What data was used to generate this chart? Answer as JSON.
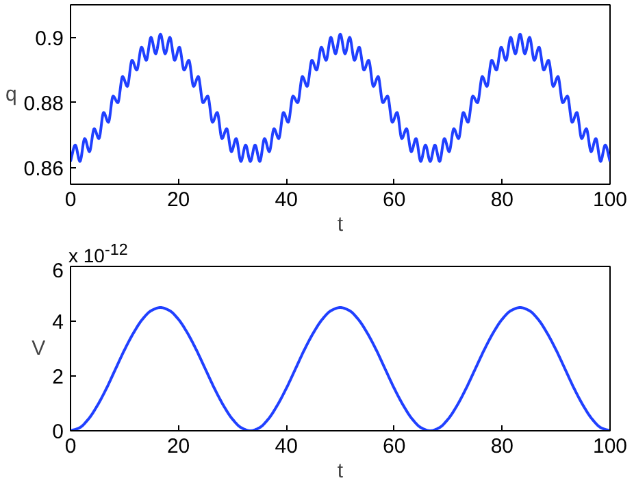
{
  "chart_data": [
    {
      "type": "line",
      "xlabel": "t",
      "ylabel": "q",
      "xlim": [
        0,
        100
      ],
      "xticks": [
        0,
        20,
        40,
        60,
        80,
        100
      ],
      "ylim": [
        0.855,
        0.91
      ],
      "yticks": [
        0.86,
        0.88,
        0.9
      ],
      "series": [
        {
          "color": "#2040ff",
          "x": [
            0,
            0.88,
            1.75,
            2.63,
            3.51,
            4.39,
            5.26,
            6.14,
            7.02,
            7.89,
            8.77,
            9.65,
            10.53,
            11.4,
            12.28,
            13.16,
            14.04,
            14.91,
            15.79,
            16.67,
            17.54,
            18.42,
            19.3,
            20.18,
            21.05,
            21.93,
            22.81,
            23.68,
            24.56,
            25.44,
            26.32,
            27.19,
            28.07,
            28.95,
            29.82,
            30.7,
            31.58,
            32.46,
            33.33,
            34.21,
            35.09,
            35.96,
            36.84,
            37.72,
            38.6,
            39.47,
            40.35,
            41.23,
            42.11,
            42.98,
            43.86,
            44.74,
            45.61,
            46.49,
            47.37,
            48.25,
            49.12,
            50.0,
            50.88,
            51.75,
            52.63,
            53.51,
            54.39,
            55.26,
            56.14,
            57.02,
            57.89,
            58.77,
            59.65,
            60.53,
            61.4,
            62.28,
            63.16,
            64.04,
            64.91,
            65.79,
            66.67,
            67.54,
            68.42,
            69.3,
            70.18,
            71.05,
            71.93,
            72.81,
            73.68,
            74.56,
            75.44,
            76.32,
            77.19,
            78.07,
            78.95,
            79.82,
            80.7,
            81.58,
            82.46,
            83.33,
            84.21,
            85.09,
            85.96,
            86.84,
            87.72,
            88.6,
            89.47,
            90.35,
            91.23,
            92.11,
            92.98,
            93.86,
            94.74,
            95.61,
            96.49,
            97.37,
            98.25,
            99.12,
            100
          ],
          "values": [
            0.862,
            0.867,
            0.862,
            0.869,
            0.865,
            0.872,
            0.869,
            0.877,
            0.874,
            0.882,
            0.88,
            0.888,
            0.885,
            0.893,
            0.89,
            0.897,
            0.893,
            0.9,
            0.895,
            0.901,
            0.895,
            0.9,
            0.893,
            0.897,
            0.89,
            0.893,
            0.885,
            0.888,
            0.88,
            0.882,
            0.874,
            0.877,
            0.869,
            0.872,
            0.865,
            0.869,
            0.862,
            0.867,
            0.862,
            0.867,
            0.862,
            0.869,
            0.865,
            0.872,
            0.869,
            0.877,
            0.874,
            0.882,
            0.88,
            0.888,
            0.885,
            0.893,
            0.89,
            0.897,
            0.893,
            0.9,
            0.895,
            0.901,
            0.895,
            0.9,
            0.893,
            0.897,
            0.89,
            0.893,
            0.885,
            0.888,
            0.88,
            0.882,
            0.874,
            0.877,
            0.869,
            0.872,
            0.865,
            0.869,
            0.862,
            0.867,
            0.862,
            0.867,
            0.862,
            0.869,
            0.865,
            0.872,
            0.869,
            0.877,
            0.874,
            0.882,
            0.88,
            0.888,
            0.885,
            0.893,
            0.89,
            0.897,
            0.893,
            0.9,
            0.895,
            0.901,
            0.895,
            0.9,
            0.893,
            0.897,
            0.89,
            0.893,
            0.885,
            0.888,
            0.88,
            0.882,
            0.874,
            0.877,
            0.869,
            0.872,
            0.865,
            0.869,
            0.862,
            0.867,
            0.862
          ]
        }
      ]
    },
    {
      "type": "line",
      "xlabel": "t",
      "ylabel": "V",
      "xlim": [
        0,
        100
      ],
      "xticks": [
        0,
        20,
        40,
        60,
        80,
        100
      ],
      "ylim": [
        0,
        6
      ],
      "yticks": [
        0,
        2,
        4,
        6
      ],
      "annotations": [
        "x 10$^{-12}$"
      ],
      "series": [
        {
          "color": "#2040ff",
          "x": [
            0,
            1.67,
            3.33,
            5,
            6.67,
            8.33,
            10,
            11.67,
            13.33,
            15,
            16.67,
            18.33,
            20,
            21.67,
            23.33,
            25,
            26.67,
            28.33,
            30,
            31.67,
            33.33,
            35,
            36.67,
            38.33,
            40,
            41.67,
            43.33,
            45,
            46.67,
            48.33,
            50,
            51.67,
            53.33,
            55,
            56.67,
            58.33,
            60,
            61.67,
            63.33,
            65,
            66.67,
            68.33,
            70,
            71.67,
            73.33,
            75,
            76.67,
            78.33,
            80,
            81.67,
            83.33,
            85,
            86.67,
            88.33,
            90,
            91.67,
            93.33,
            95,
            96.67,
            98.33,
            100
          ],
          "values": [
            0,
            0.11,
            0.43,
            0.93,
            1.55,
            2.25,
            2.95,
            3.57,
            4.07,
            4.39,
            4.5,
            4.39,
            4.07,
            3.57,
            2.95,
            2.25,
            1.55,
            0.93,
            0.43,
            0.11,
            0,
            0.11,
            0.43,
            0.93,
            1.55,
            2.25,
            2.95,
            3.57,
            4.07,
            4.39,
            4.5,
            4.39,
            4.07,
            3.57,
            2.95,
            2.25,
            1.55,
            0.93,
            0.43,
            0.11,
            0,
            0.11,
            0.43,
            0.93,
            1.55,
            2.25,
            2.95,
            3.57,
            4.07,
            4.39,
            4.5,
            4.39,
            4.07,
            3.57,
            2.95,
            2.25,
            1.55,
            0.93,
            0.43,
            0.11,
            0
          ]
        }
      ]
    }
  ]
}
